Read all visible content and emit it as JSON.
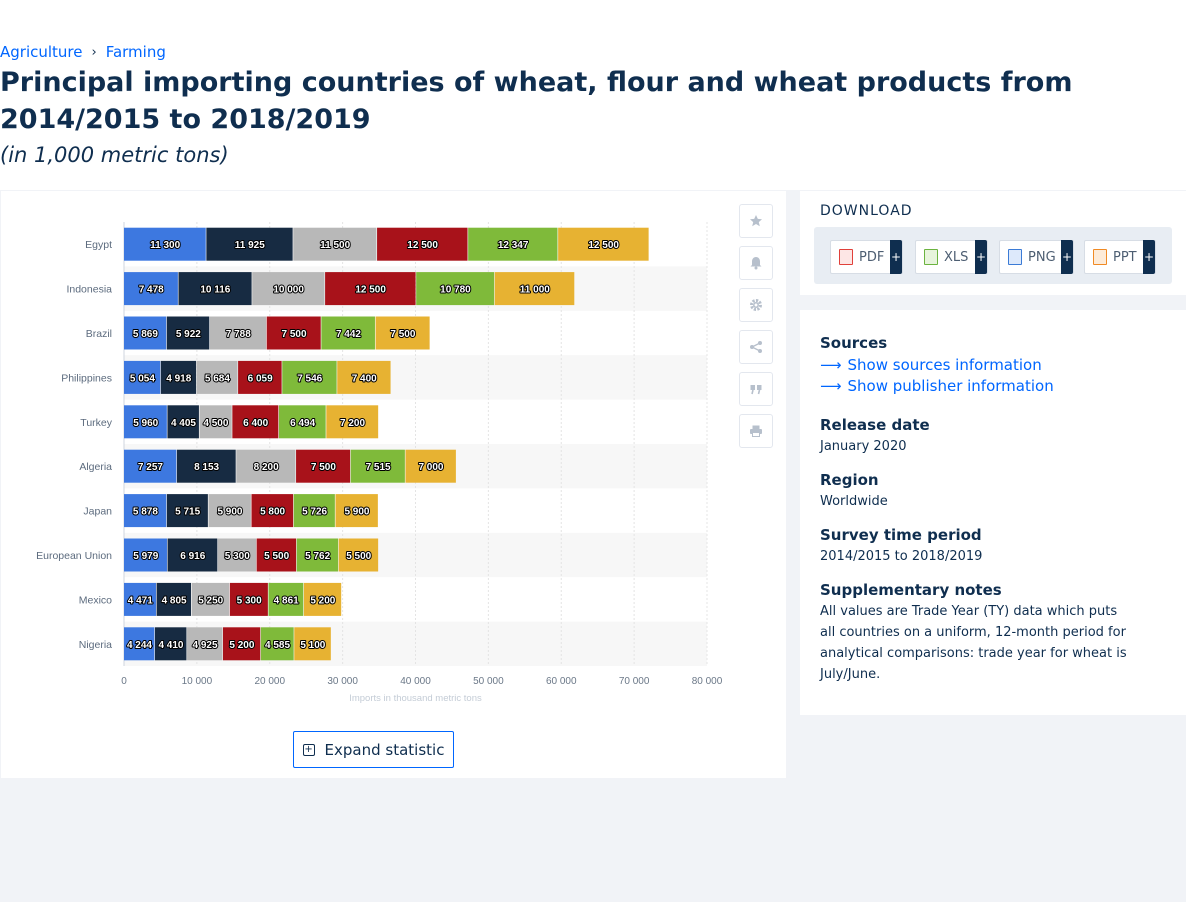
{
  "breadcrumb": {
    "items": [
      "Agriculture",
      "Farming"
    ],
    "separator": "›"
  },
  "title": "Principal importing countries of wheat, flour and wheat products from 2014/2015 to 2018/2019",
  "subtitle": "(in 1,000 metric tons)",
  "expand_label": "Expand statistic",
  "download": {
    "heading": "DOWNLOAD",
    "buttons": [
      {
        "label": "PDF",
        "icon": "pdf-file-icon",
        "color": "#e0403a"
      },
      {
        "label": "XLS",
        "icon": "xls-file-icon",
        "color": "#6bb33f"
      },
      {
        "label": "PNG",
        "icon": "png-file-icon",
        "color": "#3b7bd6"
      },
      {
        "label": "PPT",
        "icon": "ppt-file-icon",
        "color": "#f08a24"
      }
    ],
    "plus": "+"
  },
  "tools": [
    "star-icon",
    "bell-icon",
    "gear-icon",
    "share-icon",
    "quote-icon",
    "print-icon"
  ],
  "info": {
    "sources_heading": "Sources",
    "show_sources": "Show sources information",
    "show_publisher": "Show publisher information",
    "release_heading": "Release date",
    "release_value": "January 2020",
    "region_heading": "Region",
    "region_value": "Worldwide",
    "survey_heading": "Survey time period",
    "survey_value": "2014/2015 to 2018/2019",
    "notes_heading": "Supplementary notes",
    "notes_value": "All values are Trade Year (TY) data which puts all countries on a uniform, 12-month period for analytical comparisons: trade year for wheat is July/June."
  },
  "chart_data": {
    "type": "bar",
    "orientation": "horizontal",
    "stacked": true,
    "categories": [
      "Egypt",
      "Indonesia",
      "Brazil",
      "Philippines",
      "Turkey",
      "Algeria",
      "Japan",
      "European Union",
      "Mexico",
      "Nigeria"
    ],
    "series": [
      {
        "color": "#3d78e0",
        "values": [
          11300,
          7478,
          5869,
          5054,
          5960,
          7257,
          5878,
          5979,
          4471,
          4244
        ]
      },
      {
        "color": "#172b42",
        "values": [
          11925,
          10116,
          5922,
          4918,
          4405,
          8153,
          5715,
          6916,
          4805,
          4410
        ]
      },
      {
        "color": "#b8b8b8",
        "values": [
          11500,
          10000,
          7788,
          5684,
          4500,
          8200,
          5900,
          5300,
          5250,
          4925
        ]
      },
      {
        "color": "#a8121a",
        "values": [
          12500,
          12500,
          7500,
          6059,
          6400,
          7500,
          5800,
          5500,
          5300,
          5200
        ]
      },
      {
        "color": "#7fba3a",
        "values": [
          12347,
          10780,
          7442,
          7546,
          6494,
          7515,
          5726,
          5762,
          4861,
          4585
        ]
      },
      {
        "color": "#e7b232",
        "values": [
          12500,
          11000,
          7500,
          7400,
          7200,
          7000,
          5900,
          5500,
          5200,
          5100
        ]
      }
    ],
    "value_labels": [
      [
        "11 300",
        "11 925",
        "11 500",
        "12 500",
        "12 347",
        "12 500"
      ],
      [
        "7 478",
        "10 116",
        "10 000",
        "12 500",
        "10 780",
        "11 000"
      ],
      [
        "5 869",
        "5 922",
        "7 788",
        "7 500",
        "7 442",
        "7 500"
      ],
      [
        "5 054",
        "4 918",
        "5 684",
        "6 059",
        "7 546",
        "7 400"
      ],
      [
        "5 960",
        "4 405",
        "4 500",
        "6 400",
        "6 494",
        "7 200"
      ],
      [
        "7 257",
        "8 153",
        "8 200",
        "7 500",
        "7 515",
        "7 000"
      ],
      [
        "5 878",
        "5 715",
        "5 900",
        "5 800",
        "5 726",
        "5 900"
      ],
      [
        "5 979",
        "6 916",
        "5 300",
        "5 500",
        "5 762",
        "5 500"
      ],
      [
        "4 471",
        "4 805",
        "5 250",
        "5 300",
        "4 861",
        "5 200"
      ],
      [
        "4 244",
        "4 410",
        "4 925",
        "5 200",
        "4 585",
        "5 100"
      ]
    ],
    "xlim": [
      0,
      80000
    ],
    "xticks": [
      0,
      10000,
      20000,
      30000,
      40000,
      50000,
      60000,
      70000,
      80000
    ],
    "xtick_labels": [
      "0",
      "10 000",
      "20 000",
      "30 000",
      "40 000",
      "50 000",
      "60 000",
      "70 000",
      "80 000"
    ],
    "xlabel": "Imports in thousand metric tons",
    "grid": true
  }
}
